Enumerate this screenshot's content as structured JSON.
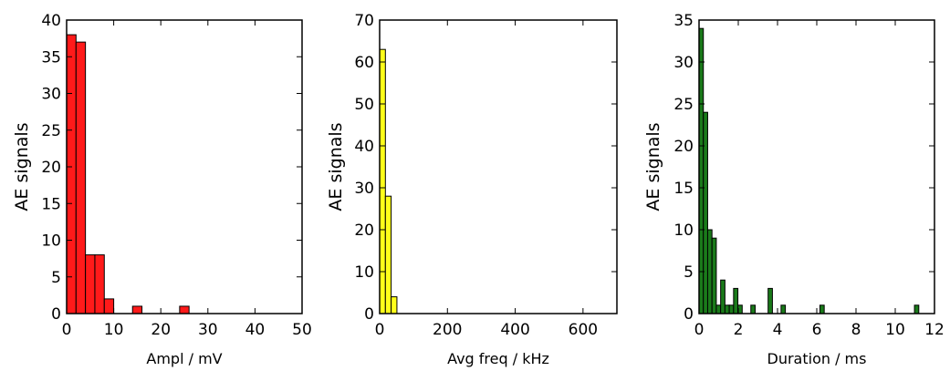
{
  "chart_data": [
    {
      "type": "bar",
      "subtype": "histogram",
      "xlabel": "Ampl / mV",
      "ylabel": "AE signals",
      "xlim": [
        0,
        50
      ],
      "ylim": [
        0,
        40
      ],
      "xticks": [
        0,
        10,
        20,
        30,
        40,
        50
      ],
      "yticks": [
        0,
        5,
        10,
        15,
        20,
        25,
        30,
        35,
        40
      ],
      "bin_width": 2,
      "color": "#ff1a1a",
      "bins": [
        {
          "x": 0,
          "value": 38
        },
        {
          "x": 2,
          "value": 37
        },
        {
          "x": 4,
          "value": 8
        },
        {
          "x": 6,
          "value": 8
        },
        {
          "x": 8,
          "value": 2
        },
        {
          "x": 14,
          "value": 1
        },
        {
          "x": 24,
          "value": 1
        }
      ],
      "grid": false
    },
    {
      "type": "bar",
      "subtype": "histogram",
      "xlabel": "Avg freq / kHz",
      "ylabel": "AE signals",
      "xlim": [
        0,
        700
      ],
      "ylim": [
        0,
        70
      ],
      "xticks": [
        0,
        200,
        400,
        600
      ],
      "yticks": [
        0,
        10,
        20,
        30,
        40,
        50,
        60,
        70
      ],
      "bin_width": 17,
      "color": "#ffff1a",
      "bins": [
        {
          "x": 0,
          "value": 63
        },
        {
          "x": 17,
          "value": 28
        },
        {
          "x": 34,
          "value": 4
        }
      ],
      "grid": false
    },
    {
      "type": "bar",
      "subtype": "histogram",
      "xlabel": "Duration / ms",
      "ylabel": "AE signals",
      "xlim": [
        0,
        12
      ],
      "ylim": [
        0,
        35
      ],
      "xticks": [
        0,
        2,
        4,
        6,
        8,
        10,
        12
      ],
      "yticks": [
        0,
        5,
        10,
        15,
        20,
        25,
        30,
        35
      ],
      "bin_width": 0.22,
      "color": "#1a7a1a",
      "bins": [
        {
          "x": 0.0,
          "value": 34
        },
        {
          "x": 0.22,
          "value": 24
        },
        {
          "x": 0.44,
          "value": 10
        },
        {
          "x": 0.66,
          "value": 9
        },
        {
          "x": 0.88,
          "value": 1
        },
        {
          "x": 1.1,
          "value": 4
        },
        {
          "x": 1.32,
          "value": 1
        },
        {
          "x": 1.54,
          "value": 1
        },
        {
          "x": 1.76,
          "value": 3
        },
        {
          "x": 1.98,
          "value": 1
        },
        {
          "x": 2.64,
          "value": 1
        },
        {
          "x": 3.52,
          "value": 3
        },
        {
          "x": 4.18,
          "value": 1
        },
        {
          "x": 6.16,
          "value": 1
        },
        {
          "x": 10.98,
          "value": 1
        }
      ],
      "grid": false
    }
  ]
}
